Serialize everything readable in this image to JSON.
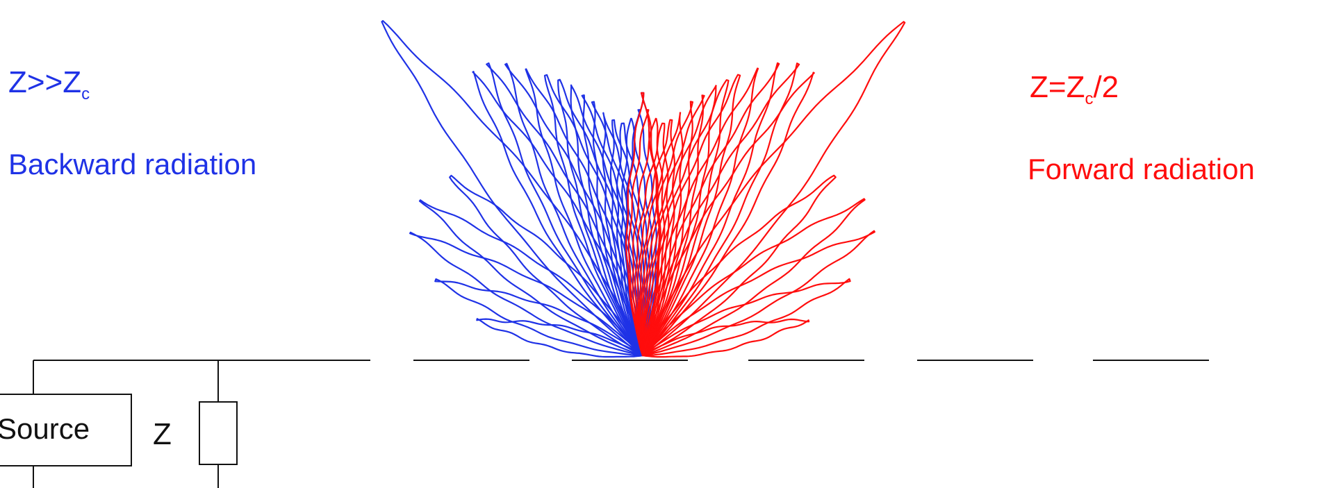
{
  "colors": {
    "backward": "#1f32e6",
    "forward": "#ff0d0d",
    "circuit": "#111111"
  },
  "labels": {
    "left_condition": {
      "base": "Z>>Z",
      "sub": "c"
    },
    "left_caption": "Backward radiation",
    "right_condition": {
      "base": "Z=Z",
      "sub": "c",
      "tail": "/2"
    },
    "right_caption": "Forward radiation"
  },
  "circuit": {
    "source_label": "Source",
    "impedance_label": "Z"
  },
  "radiation_patterns": {
    "backward": {
      "angles_deg": [
        168,
        160,
        152,
        145,
        137,
        128,
        121,
        118,
        115,
        112,
        109,
        107,
        105,
        103,
        101,
        99,
        97,
        95,
        93,
        91,
        90
      ],
      "relative_lengths": [
        0.4,
        0.52,
        0.62,
        0.64,
        0.62,
        1.0,
        0.78,
        0.78,
        0.76,
        0.73,
        0.7,
        0.68,
        0.66,
        0.63,
        0.61,
        0.58,
        0.56,
        0.55,
        0.56,
        0.58,
        0.62
      ]
    },
    "forward": {
      "angles_deg": [
        12,
        20,
        28,
        35,
        43,
        52,
        59,
        62,
        65,
        68,
        71,
        73,
        75,
        77,
        79,
        81,
        83,
        85,
        87,
        89,
        90
      ],
      "relative_lengths": [
        0.4,
        0.52,
        0.62,
        0.64,
        0.62,
        1.0,
        0.78,
        0.78,
        0.76,
        0.73,
        0.7,
        0.68,
        0.66,
        0.63,
        0.61,
        0.58,
        0.56,
        0.55,
        0.56,
        0.58,
        0.62
      ]
    }
  }
}
